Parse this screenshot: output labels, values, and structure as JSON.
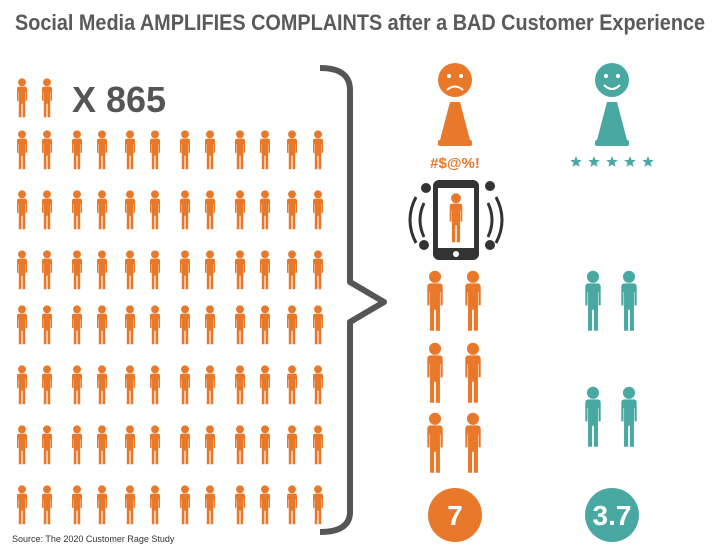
{
  "title": "Social Media AMPLIFIES COMPLAINTS after a BAD Customer Experience",
  "multiplier": "X 865",
  "bad_experience": {
    "symbols": "#$@%!",
    "count": 7
  },
  "good_experience": {
    "count": 3.7
  },
  "source": "Source:  The 2020 Customer Rage Study"
}
